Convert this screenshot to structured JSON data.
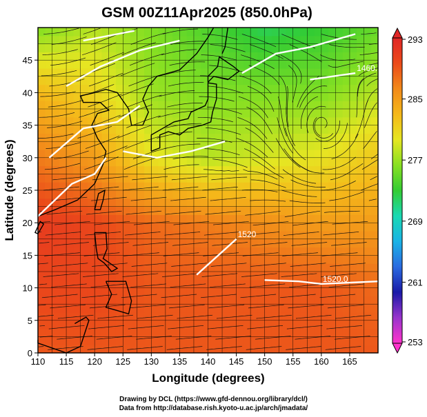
{
  "chart_data": {
    "type": "heatmap",
    "title": "GSM 00Z11Apr2025 (850.0hPa)",
    "xlabel": "Longitude (degrees)",
    "ylabel": "Latitude  (degrees)",
    "xlim": [
      110,
      170
    ],
    "ylim": [
      0,
      50
    ],
    "xticks": [
      110,
      115,
      120,
      125,
      130,
      135,
      140,
      145,
      150,
      155,
      160,
      165
    ],
    "yticks": [
      0,
      5,
      10,
      15,
      20,
      25,
      30,
      35,
      40,
      45
    ],
    "grid": true,
    "colorbar": {
      "min": 253,
      "max": 293,
      "ticks": [
        253,
        261,
        269,
        277,
        285,
        293
      ],
      "stops": [
        "#ff33cc",
        "#9933cc",
        "#1a1aa8",
        "#2a6ae0",
        "#1ab3e6",
        "#1ad9b3",
        "#33cc33",
        "#88e022",
        "#e6e622",
        "#f5b81a",
        "#f28a1a",
        "#eb4a1a",
        "#e02626"
      ]
    },
    "temperature_field_K": {
      "lons": [
        110,
        120,
        130,
        140,
        150,
        160,
        170
      ],
      "lats": [
        0,
        10,
        20,
        30,
        40,
        50
      ],
      "values": [
        [
          289,
          289,
          289,
          289,
          289,
          289,
          289
        ],
        [
          290,
          290,
          289,
          289,
          289,
          289,
          288
        ],
        [
          291,
          290,
          288,
          287,
          286,
          285,
          285
        ],
        [
          287,
          285,
          280,
          278,
          279,
          280,
          282
        ],
        [
          283,
          281,
          277,
          276,
          276,
          276,
          278
        ],
        [
          276,
          278,
          276,
          274,
          272,
          273,
          275
        ]
      ]
    },
    "height_contours": [
      {
        "label": "1520.0",
        "points": [
          [
            150,
            11.2
          ],
          [
            156,
            11.0
          ],
          [
            160,
            10.6
          ],
          [
            170,
            11.0
          ]
        ]
      },
      {
        "label": "1520",
        "points": [
          [
            138,
            12.0
          ],
          [
            145,
            17.5
          ]
        ]
      },
      {
        "label": "1460.0",
        "points": [
          [
            158,
            42
          ],
          [
            166,
            43
          ]
        ]
      }
    ]
  },
  "credits": {
    "line1": "Drawing by DCL (https://www.gfd-dennou.org/library/dcl/)",
    "line2": "Data from http://database.rish.kyoto-u.ac.jp/arch/jmadata/"
  }
}
